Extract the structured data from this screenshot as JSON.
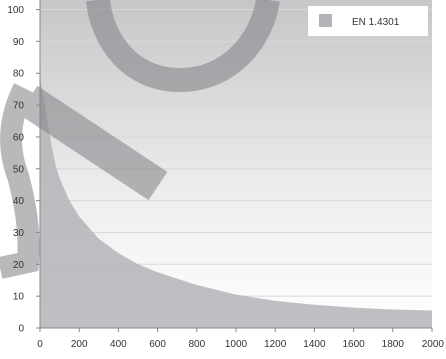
{
  "chart_data": {
    "type": "area",
    "x_ticks": [
      "0",
      "200",
      "400",
      "600",
      "800",
      "1000",
      "1200",
      "1400",
      "1600",
      "1800",
      "2000"
    ],
    "y_ticks": [
      "0",
      "10",
      "20",
      "30",
      "40",
      "50",
      "60",
      "70",
      "80",
      "90",
      "100"
    ],
    "xlim": [
      0,
      2000
    ],
    "ylim": [
      0,
      103
    ],
    "grid": true,
    "legend_position": "top-right",
    "series": [
      {
        "name": "EN 1.4301",
        "color": "#b4b4b8",
        "x": [
          0,
          20,
          40,
          60,
          80,
          100,
          150,
          200,
          300,
          400,
          500,
          600,
          800,
          1000,
          1200,
          1400,
          1600,
          1800,
          2000
        ],
        "y": [
          79,
          72,
          64,
          57,
          51,
          47,
          40,
          35,
          28,
          23.5,
          20,
          17.5,
          13.5,
          10.5,
          8.5,
          7.3,
          6.4,
          5.8,
          5.5
        ]
      }
    ]
  }
}
